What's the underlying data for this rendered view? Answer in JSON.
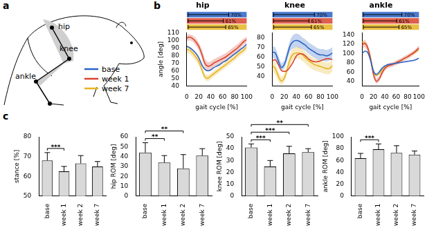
{
  "panel_labels": [
    "a",
    "b",
    "c"
  ],
  "diagram": {
    "joints": [
      "hip",
      "knee",
      "ankle"
    ],
    "legend": [
      {
        "name": "base",
        "color": "#2a63c4"
      },
      {
        "name": "week 1",
        "color": "#d8432f"
      },
      {
        "name": "week 7",
        "color": "#e6b422"
      }
    ]
  },
  "chart_data": [
    {
      "type": "line",
      "title": "hip",
      "xlabel": "gait cycle [%]",
      "ylabel": "angle [deg]",
      "x": [
        0,
        5,
        10,
        15,
        20,
        25,
        30,
        35,
        40,
        45,
        50,
        55,
        60,
        65,
        70,
        75,
        80,
        85,
        90,
        95,
        100
      ],
      "xlim": [
        0,
        100
      ],
      "xticks": [
        0,
        20,
        40,
        60,
        80,
        100
      ],
      "ylim": [
        40,
        110
      ],
      "yticks": [
        40,
        50,
        60,
        70,
        80,
        90,
        100,
        110
      ],
      "grid": false,
      "series": [
        {
          "name": "base",
          "color": "#2a63c4",
          "values": [
            92,
            90,
            87,
            83,
            77,
            68,
            62,
            60,
            61,
            64,
            66,
            68,
            71,
            73,
            76,
            79,
            82,
            85,
            88,
            91,
            95
          ]
        },
        {
          "name": "week 1",
          "color": "#d8432f",
          "values": [
            103,
            104,
            102,
            98,
            92,
            82,
            70,
            66,
            67,
            70,
            72,
            74,
            76,
            78,
            81,
            84,
            87,
            90,
            94,
            98,
            101
          ],
          "sd": [
            4,
            4,
            4,
            5,
            5,
            6,
            6,
            5,
            5,
            5,
            5,
            5,
            5,
            5,
            5,
            5,
            5,
            5,
            5,
            4,
            4
          ]
        },
        {
          "name": "week 7",
          "color": "#e6b422",
          "values": [
            88,
            87,
            83,
            78,
            72,
            62,
            52,
            50,
            53,
            56,
            59,
            62,
            65,
            68,
            71,
            74,
            77,
            81,
            84,
            87,
            91
          ],
          "sd": [
            5,
            5,
            5,
            5,
            5,
            5,
            4,
            4,
            4,
            4,
            4,
            4,
            4,
            4,
            4,
            4,
            4,
            4,
            4,
            4,
            4
          ]
        }
      ],
      "stance_values": [
        70,
        61,
        65
      ],
      "stance_labels": [
        "70%",
        "61%",
        "65%"
      ]
    },
    {
      "type": "line",
      "title": "knee",
      "xlabel": "gait cycle [%]",
      "x": [
        0,
        5,
        10,
        15,
        20,
        25,
        30,
        35,
        40,
        45,
        50,
        55,
        60,
        65,
        70,
        75,
        80,
        85,
        90,
        95,
        100
      ],
      "xlim": [
        0,
        100
      ],
      "xticks": [
        0,
        20,
        40,
        60,
        80,
        100
      ],
      "ylim": [
        30,
        85
      ],
      "yticks": [
        40,
        50,
        60,
        70,
        80
      ],
      "grid": false,
      "series": [
        {
          "name": "base",
          "color": "#2a63c4",
          "values": [
            65,
            64,
            56,
            49,
            52,
            62,
            72,
            76,
            77,
            76,
            74,
            72,
            69,
            67,
            65,
            63,
            62,
            62,
            61,
            62,
            64
          ],
          "sd": [
            6,
            6,
            5,
            4,
            4,
            5,
            6,
            7,
            7,
            7,
            6,
            6,
            6,
            6,
            6,
            6,
            6,
            6,
            6,
            6,
            6
          ]
        },
        {
          "name": "week 1",
          "color": "#d8432f",
          "values": [
            56,
            57,
            52,
            46,
            45,
            46,
            50,
            55,
            61,
            63,
            63,
            61,
            58,
            56,
            55,
            55,
            56,
            57,
            58,
            58,
            57
          ]
        },
        {
          "name": "week 7",
          "color": "#e6b422",
          "values": [
            51,
            48,
            40,
            35,
            38,
            48,
            58,
            63,
            64,
            64,
            62,
            59,
            56,
            54,
            52,
            51,
            50,
            49,
            48,
            48,
            51
          ],
          "sd": [
            6,
            6,
            5,
            4,
            4,
            5,
            6,
            6,
            6,
            6,
            6,
            6,
            6,
            6,
            6,
            6,
            6,
            6,
            6,
            6,
            6
          ]
        }
      ],
      "stance_values": [
        70,
        61,
        65
      ],
      "stance_labels": [
        "70%",
        "61%",
        "65%"
      ]
    },
    {
      "type": "line",
      "title": "ankle",
      "xlabel": "gait cycle [%]",
      "x": [
        0,
        5,
        10,
        15,
        20,
        25,
        30,
        35,
        40,
        45,
        50,
        55,
        60,
        65,
        70,
        75,
        80,
        85,
        90,
        95,
        100
      ],
      "xlim": [
        0,
        100
      ],
      "xticks": [
        0,
        20,
        40,
        60,
        80,
        100
      ],
      "ylim": [
        30,
        145
      ],
      "yticks": [
        40,
        60,
        80,
        100,
        120,
        140
      ],
      "grid": false,
      "series": [
        {
          "name": "base",
          "color": "#2a63c4",
          "values": [
            100,
            105,
            102,
            85,
            62,
            55,
            60,
            68,
            73,
            76,
            77,
            78,
            79,
            80,
            81,
            82,
            83,
            84,
            85,
            87,
            90
          ]
        },
        {
          "name": "week 1",
          "color": "#d8432f",
          "values": [
            118,
            122,
            112,
            88,
            55,
            40,
            45,
            58,
            68,
            73,
            75,
            77,
            80,
            83,
            86,
            90,
            93,
            97,
            101,
            106,
            112
          ],
          "sd": [
            8,
            8,
            8,
            8,
            7,
            6,
            6,
            6,
            5,
            5,
            5,
            5,
            5,
            5,
            5,
            5,
            5,
            5,
            5,
            5,
            6
          ]
        },
        {
          "name": "week 7",
          "color": "#e6b422",
          "values": [
            125,
            122,
            112,
            90,
            62,
            52,
            56,
            64,
            70,
            74,
            76,
            78,
            80,
            83,
            86,
            90,
            93,
            97,
            100,
            104,
            110
          ]
        }
      ],
      "stance_values": [
        70,
        61,
        65
      ],
      "stance_labels": [
        "70%",
        "61%",
        "65%"
      ]
    },
    {
      "type": "bar",
      "ylabel": "stance [%]",
      "categories": [
        "base",
        "week 1",
        "week 2",
        "week 7"
      ],
      "values": [
        68,
        62.5,
        66.5,
        65
      ],
      "errors": [
        4,
        2.5,
        4,
        2.5
      ],
      "ylim": [
        50,
        80
      ],
      "yticks": [
        50,
        60,
        70,
        80
      ],
      "color": "#d9d9d9",
      "grid": false,
      "significance": [
        {
          "pair": [
            "base",
            "week 1"
          ],
          "label": "***"
        }
      ]
    },
    {
      "type": "bar",
      "ylabel": "hip ROM [deg]",
      "categories": [
        "base",
        "week 1",
        "week 2",
        "week 7"
      ],
      "values": [
        44,
        34,
        28,
        41
      ],
      "errors": [
        10,
        7,
        14,
        7
      ],
      "ylim": [
        0,
        60
      ],
      "yticks": [
        0,
        10,
        20,
        30,
        40,
        50,
        60
      ],
      "color": "#d9d9d9",
      "grid": false,
      "significance": [
        {
          "pair": [
            "base",
            "week 1"
          ],
          "label": "**"
        },
        {
          "pair": [
            "base",
            "week 2"
          ],
          "label": "**"
        }
      ]
    },
    {
      "type": "bar",
      "ylabel": "knee ROM [deg]",
      "categories": [
        "base",
        "week 1",
        "week 2",
        "week 7"
      ],
      "values": [
        41,
        25,
        36,
        37
      ],
      "errors": [
        3,
        5,
        6,
        3
      ],
      "ylim": [
        0,
        50
      ],
      "yticks": [
        0,
        10,
        20,
        30,
        40,
        50
      ],
      "color": "#d9d9d9",
      "grid": false,
      "significance": [
        {
          "pair": [
            "base",
            "week 1"
          ],
          "label": "***"
        },
        {
          "pair": [
            "base",
            "week 2"
          ],
          "label": "***"
        },
        {
          "pair": [
            "base",
            "week 7"
          ],
          "label": "**"
        }
      ]
    },
    {
      "type": "bar",
      "ylabel": "ankle ROM [deg]",
      "categories": [
        "base",
        "week 1",
        "week 2",
        "week 7"
      ],
      "values": [
        64,
        79,
        73,
        70
      ],
      "errors": [
        8,
        9,
        12,
        6
      ],
      "ylim": [
        0,
        100
      ],
      "yticks": [
        0,
        20,
        40,
        60,
        80,
        100
      ],
      "color": "#d9d9d9",
      "grid": false,
      "significance": [
        {
          "pair": [
            "base",
            "week 1"
          ],
          "label": "***"
        }
      ]
    }
  ]
}
